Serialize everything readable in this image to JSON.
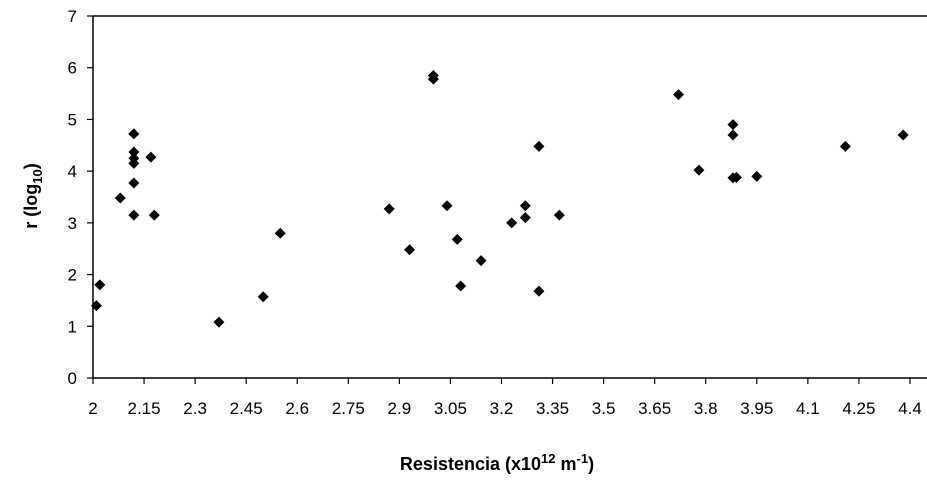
{
  "chart_data": {
    "type": "scatter",
    "title": "",
    "xlabel": {
      "main": "Resistencia (x10",
      "sup": "12",
      "unit": " m",
      "unit_sup": "-1",
      "close": ")"
    },
    "ylabel": {
      "main": "r (log",
      "sub": "10",
      "close": ")"
    },
    "xlim": [
      2.0,
      4.45
    ],
    "ylim": [
      0,
      7
    ],
    "xticks": [
      "2",
      "2.15",
      "2.3",
      "2.45",
      "2.6",
      "2.75",
      "2.9",
      "3.05",
      "3.2",
      "3.35",
      "3.5",
      "3.65",
      "3.8",
      "3.95",
      "4.1",
      "4.25",
      "4.4"
    ],
    "yticks": [
      "0",
      "1",
      "2",
      "3",
      "4",
      "5",
      "6",
      "7"
    ],
    "grid": false,
    "legend": "none",
    "marker": "diamond",
    "marker_color": "#000000",
    "points": [
      {
        "x": 2.01,
        "y": 1.4
      },
      {
        "x": 2.02,
        "y": 1.8
      },
      {
        "x": 2.08,
        "y": 3.48
      },
      {
        "x": 2.12,
        "y": 4.72
      },
      {
        "x": 2.12,
        "y": 4.37
      },
      {
        "x": 2.12,
        "y": 4.25
      },
      {
        "x": 2.12,
        "y": 4.15
      },
      {
        "x": 2.12,
        "y": 3.77
      },
      {
        "x": 2.12,
        "y": 3.15
      },
      {
        "x": 2.17,
        "y": 4.27
      },
      {
        "x": 2.18,
        "y": 3.15
      },
      {
        "x": 2.37,
        "y": 1.08
      },
      {
        "x": 2.5,
        "y": 1.57
      },
      {
        "x": 2.55,
        "y": 2.8
      },
      {
        "x": 2.87,
        "y": 3.27
      },
      {
        "x": 2.93,
        "y": 2.48
      },
      {
        "x": 3.0,
        "y": 5.85
      },
      {
        "x": 3.0,
        "y": 5.78
      },
      {
        "x": 3.04,
        "y": 3.33
      },
      {
        "x": 3.07,
        "y": 2.68
      },
      {
        "x": 3.08,
        "y": 1.78
      },
      {
        "x": 3.14,
        "y": 2.27
      },
      {
        "x": 3.23,
        "y": 3.0
      },
      {
        "x": 3.27,
        "y": 3.33
      },
      {
        "x": 3.27,
        "y": 3.1
      },
      {
        "x": 3.31,
        "y": 4.48
      },
      {
        "x": 3.31,
        "y": 1.68
      },
      {
        "x": 3.37,
        "y": 3.15
      },
      {
        "x": 3.72,
        "y": 5.48
      },
      {
        "x": 3.78,
        "y": 4.02
      },
      {
        "x": 3.88,
        "y": 4.9
      },
      {
        "x": 3.88,
        "y": 4.7
      },
      {
        "x": 3.88,
        "y": 3.87
      },
      {
        "x": 3.89,
        "y": 3.88
      },
      {
        "x": 3.95,
        "y": 3.9
      },
      {
        "x": 4.21,
        "y": 4.48
      },
      {
        "x": 4.38,
        "y": 4.7
      }
    ]
  }
}
